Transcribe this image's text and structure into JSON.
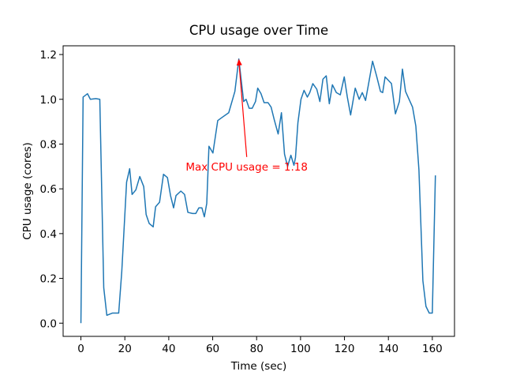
{
  "chart_data": {
    "type": "line",
    "title": "CPU usage over Time",
    "x_label": "Time (sec)",
    "y_label": "CPU usage (cores)",
    "x": [
      0,
      1,
      3,
      4.3,
      6.8,
      8.6,
      10.4,
      11.8,
      14.3,
      17.2,
      18.6,
      20.8,
      22.2,
      23.3,
      25,
      26.8,
      28.6,
      29.7,
      31.1,
      32.9,
      34,
      35.8,
      37.6,
      39.4,
      40.8,
      42.2,
      43.3,
      45.5,
      47.2,
      48.7,
      50.8,
      52.3,
      53.7,
      55.1,
      56.2,
      57.3,
      58.3,
      60.1,
      62.3,
      64.4,
      67.3,
      70.1,
      71.9,
      74.1,
      75.2,
      76.6,
      78,
      79.5,
      80.5,
      82,
      83.4,
      85.2,
      86.6,
      88,
      89.8,
      91.3,
      92.7,
      94.1,
      95.6,
      97,
      97.7,
      98.8,
      100.2,
      101.6,
      103.1,
      104.2,
      105.6,
      107.4,
      108.8,
      110.2,
      111.7,
      113.1,
      114.5,
      116.3,
      118.1,
      119.9,
      121.3,
      122.8,
      124.9,
      126.7,
      128.1,
      129.6,
      130.9,
      132.8,
      134.6,
      136.4,
      137.4,
      138.5,
      141.4,
      143.2,
      145,
      146.4,
      147.8,
      151,
      152.5,
      153.9,
      155.7,
      157.1,
      158.6,
      160,
      161.4
    ],
    "series": [
      {
        "color": "#1f77b4",
        "values": [
          0,
          1.01,
          1.025,
          1.0,
          1.003,
          1.0,
          0.158,
          0.035,
          0.045,
          0.045,
          0.23,
          0.63,
          0.69,
          0.575,
          0.595,
          0.655,
          0.61,
          0.485,
          0.445,
          0.43,
          0.52,
          0.54,
          0.665,
          0.65,
          0.57,
          0.515,
          0.57,
          0.59,
          0.575,
          0.495,
          0.49,
          0.49,
          0.515,
          0.515,
          0.475,
          0.535,
          0.79,
          0.76,
          0.905,
          0.92,
          0.94,
          1.035,
          1.18,
          0.99,
          1.0,
          0.96,
          0.96,
          0.99,
          1.05,
          1.025,
          0.985,
          0.985,
          0.965,
          0.91,
          0.845,
          0.94,
          0.755,
          0.7,
          0.75,
          0.705,
          0.74,
          0.895,
          1.0,
          1.04,
          1.01,
          1.03,
          1.07,
          1.045,
          0.99,
          1.09,
          1.105,
          0.98,
          1.065,
          1.03,
          1.02,
          1.1,
          1.01,
          0.93,
          1.05,
          1.0,
          1.03,
          0.995,
          1.065,
          1.17,
          1.105,
          1.035,
          1.03,
          1.1,
          1.07,
          0.935,
          0.99,
          1.135,
          1.035,
          0.965,
          0.88,
          0.685,
          0.19,
          0.075,
          0.045,
          0.045,
          0.66
        ]
      }
    ],
    "xlim": [
      -8.1,
      170.1
    ],
    "ylim": [
      -0.059,
      1.239
    ],
    "xticks": [
      0,
      20,
      40,
      60,
      80,
      100,
      120,
      140,
      160
    ],
    "yticks": [
      {
        "value": 0,
        "label": "0.0"
      },
      0.2,
      0.4,
      0.6,
      0.8,
      {
        "value": 1,
        "label": "1.0"
      },
      1.2
    ],
    "annotation": {
      "text": "Max CPU usage = 1.18",
      "color": "#ff0000",
      "xy": [
        71.9,
        1.18
      ],
      "xytext": [
        75.5,
        0.7
      ]
    }
  }
}
